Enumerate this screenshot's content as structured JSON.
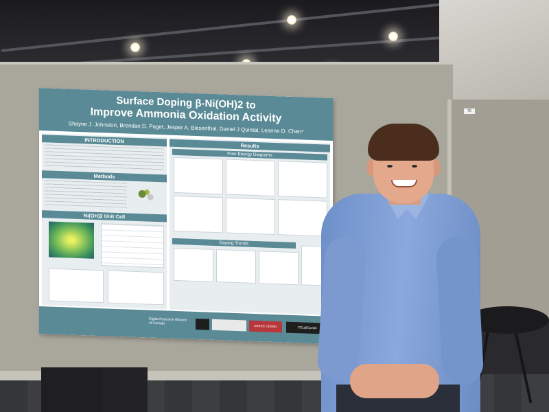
{
  "scene": "photo",
  "poster": {
    "title_line_1": "Surface Doping β-Ni(OH)2 to",
    "title_line_2": "Improve Ammonia Oxidation Activity",
    "authors": "Shayne J. Johnston, Brendan D. Paget, Jesper A. Biesenthal, Daniel J Quintal, Leanne D. Chen*",
    "sections": {
      "introduction": "INTRODUCTION",
      "methods": "Methods",
      "unit_cell": "Ni(OH)2 Unit Cell",
      "results": "Results",
      "free_energy": "Free Energy Diagrams",
      "doping_trends": "Doping Trends"
    },
    "footer_logos": [
      "Digital Research Alliance of Canada",
      "NSERC CRSNG",
      "CEL@Guelph"
    ]
  },
  "booth_tag": "70",
  "colors": {
    "poster_header": "#5a8a96",
    "shirt": "#7c9ad0",
    "panel": "#a9a69c"
  }
}
